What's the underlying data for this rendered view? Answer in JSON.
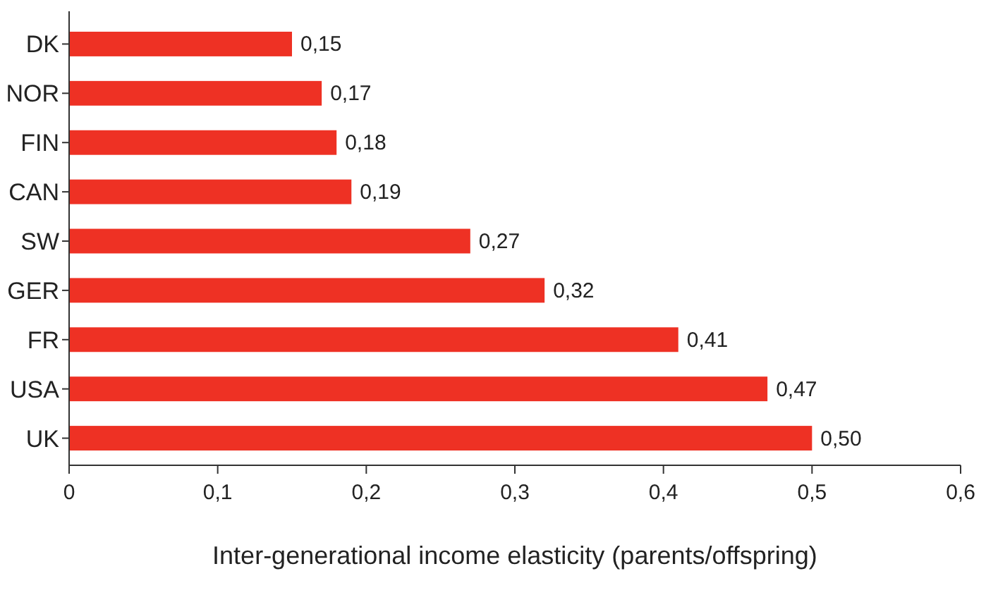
{
  "chart_data": {
    "type": "bar",
    "orientation": "horizontal",
    "xlabel": "Inter-generational income elasticity (parents/offspring)",
    "categories": [
      "DK",
      "NOR",
      "FIN",
      "CAN",
      "SW",
      "GER",
      "FR",
      "USA",
      "UK"
    ],
    "values": [
      0.15,
      0.17,
      0.18,
      0.19,
      0.27,
      0.32,
      0.41,
      0.47,
      0.5
    ],
    "value_labels": [
      "0,15",
      "0,17",
      "0,18",
      "0,19",
      "0,27",
      "0,32",
      "0,41",
      "0,47",
      "0,50"
    ],
    "color": "#ee3124",
    "xlim": [
      0,
      0.6
    ],
    "xticks": [
      0,
      {
        "value": 0.1,
        "label": "0,1"
      },
      {
        "value": 0.2,
        "label": "0,2"
      },
      {
        "value": 0.3,
        "label": "0,3"
      },
      {
        "value": 0.4,
        "label": "0,4"
      },
      {
        "value": 0.5,
        "label": "0,5"
      },
      {
        "value": 0.6,
        "label": "0,6"
      }
    ],
    "grid": false
  }
}
